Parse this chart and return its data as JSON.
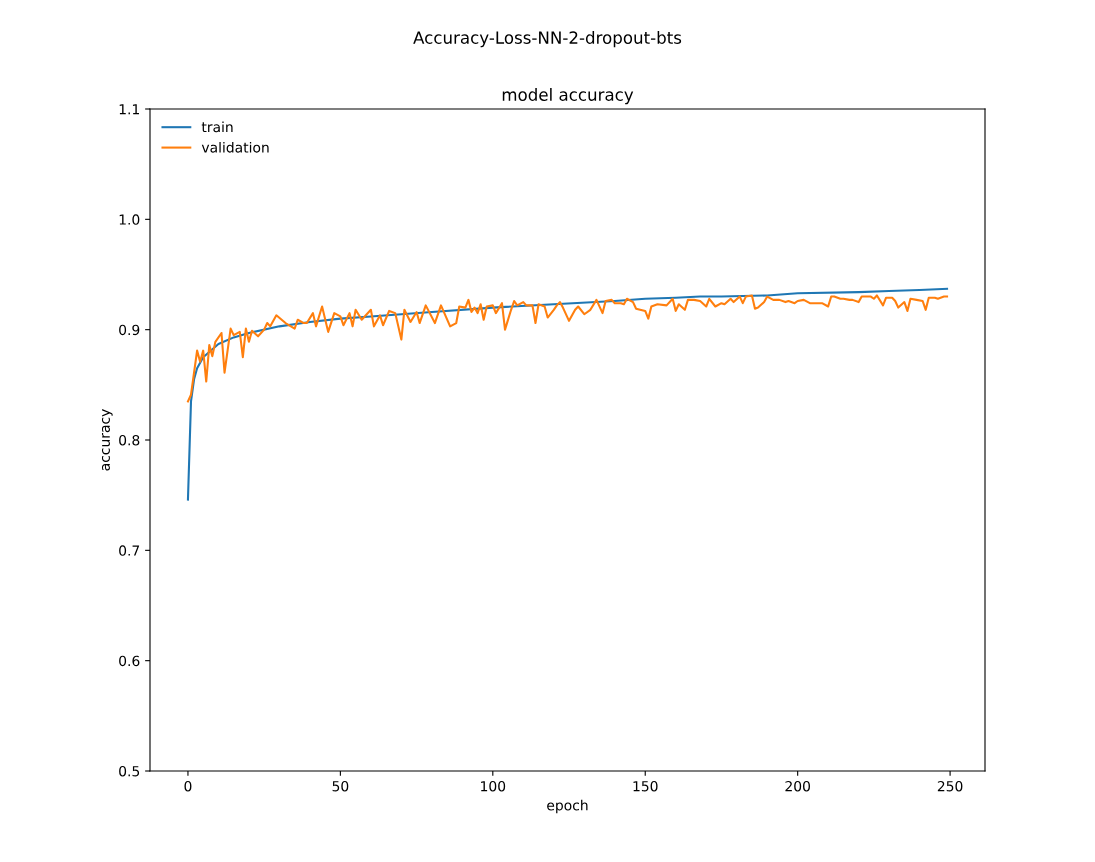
{
  "chart_data": {
    "type": "line",
    "title": "Accuracy-Loss-NN-2-dropout-bts",
    "subtitle": "model accuracy",
    "xlabel": "epoch",
    "ylabel": "accuracy",
    "xlim": [
      -12.45,
      261.45
    ],
    "ylim": [
      0.5,
      1.1
    ],
    "xticks": [
      0,
      50,
      100,
      150,
      200,
      250
    ],
    "yticks": [
      0.5,
      0.6,
      0.7,
      0.8,
      0.9,
      {
        "value": 1.0,
        "label": "1.0"
      },
      1.1
    ],
    "grid": false,
    "legend": "top left",
    "series": [
      {
        "name": "train",
        "color": "#1f77b4",
        "x": [
          0,
          1,
          2,
          3,
          5,
          10,
          15,
          20,
          30,
          40,
          50,
          60,
          80,
          100,
          120,
          140,
          150,
          160,
          168,
          175,
          190,
          200,
          220,
          230,
          240,
          249
        ],
        "values": [
          0.746,
          0.835,
          0.855,
          0.865,
          0.875,
          0.887,
          0.893,
          0.897,
          0.903,
          0.907,
          0.91,
          0.912,
          0.916,
          0.92,
          0.923,
          0.926,
          0.928,
          0.929,
          0.93,
          0.93,
          0.931,
          0.933,
          0.934,
          0.935,
          0.936,
          0.937
        ]
      },
      {
        "name": "validation",
        "color": "#ff7f0e",
        "x": [
          0,
          1,
          3,
          4,
          5,
          6,
          7,
          8,
          9,
          11,
          12,
          14,
          15,
          17,
          18,
          19,
          20,
          21,
          23,
          25,
          26,
          27,
          29,
          32,
          35,
          36,
          38,
          39,
          41,
          42,
          44,
          46,
          48,
          50,
          51,
          53,
          54,
          55,
          57,
          60,
          61,
          63,
          64,
          66,
          68,
          70,
          71,
          73,
          75,
          76,
          78,
          81,
          83,
          86,
          88,
          89,
          91,
          92,
          93,
          94,
          95,
          96,
          97,
          98,
          100,
          101,
          103,
          104,
          106,
          107,
          108,
          110,
          111,
          113,
          114,
          115,
          117,
          118,
          120,
          121,
          122,
          123,
          125,
          127,
          128,
          130,
          132,
          134,
          136,
          137,
          139,
          140,
          142,
          143,
          144,
          146,
          147,
          150,
          151,
          152,
          154,
          157,
          159,
          160,
          161,
          163,
          164,
          166,
          168,
          170,
          171,
          173,
          175,
          176,
          178,
          179,
          181,
          182,
          183,
          185,
          186,
          187,
          189,
          190,
          192,
          194,
          196,
          197,
          199,
          200,
          202,
          204,
          206,
          208,
          210,
          211,
          212,
          214,
          215,
          217,
          218,
          220,
          221,
          224,
          225,
          226,
          228,
          229,
          231,
          232,
          233,
          235,
          236,
          237,
          239,
          241,
          242,
          243,
          245,
          246,
          248,
          249
        ],
        "values": [
          0.835,
          0.841,
          0.881,
          0.871,
          0.881,
          0.853,
          0.886,
          0.876,
          0.889,
          0.897,
          0.861,
          0.901,
          0.895,
          0.898,
          0.875,
          0.901,
          0.889,
          0.899,
          0.894,
          0.9,
          0.906,
          0.903,
          0.913,
          0.906,
          0.901,
          0.909,
          0.906,
          0.906,
          0.915,
          0.903,
          0.921,
          0.898,
          0.915,
          0.912,
          0.904,
          0.915,
          0.903,
          0.918,
          0.909,
          0.918,
          0.903,
          0.913,
          0.904,
          0.917,
          0.915,
          0.891,
          0.918,
          0.907,
          0.916,
          0.906,
          0.922,
          0.906,
          0.922,
          0.903,
          0.906,
          0.921,
          0.92,
          0.927,
          0.916,
          0.92,
          0.915,
          0.923,
          0.909,
          0.921,
          0.922,
          0.915,
          0.924,
          0.9,
          0.918,
          0.926,
          0.922,
          0.925,
          0.922,
          0.922,
          0.906,
          0.923,
          0.921,
          0.911,
          0.918,
          0.922,
          0.925,
          0.92,
          0.908,
          0.918,
          0.921,
          0.914,
          0.918,
          0.927,
          0.915,
          0.926,
          0.927,
          0.924,
          0.924,
          0.923,
          0.928,
          0.925,
          0.919,
          0.917,
          0.91,
          0.921,
          0.923,
          0.922,
          0.928,
          0.917,
          0.923,
          0.918,
          0.927,
          0.927,
          0.926,
          0.921,
          0.928,
          0.921,
          0.924,
          0.923,
          0.928,
          0.925,
          0.93,
          0.924,
          0.93,
          0.931,
          0.919,
          0.92,
          0.925,
          0.93,
          0.927,
          0.927,
          0.925,
          0.926,
          0.924,
          0.926,
          0.927,
          0.924,
          0.924,
          0.924,
          0.921,
          0.93,
          0.93,
          0.928,
          0.928,
          0.927,
          0.927,
          0.925,
          0.93,
          0.93,
          0.928,
          0.931,
          0.922,
          0.929,
          0.929,
          0.926,
          0.92,
          0.925,
          0.917,
          0.928,
          0.927,
          0.926,
          0.918,
          0.929,
          0.929,
          0.928,
          0.93,
          0.93
        ]
      }
    ]
  }
}
